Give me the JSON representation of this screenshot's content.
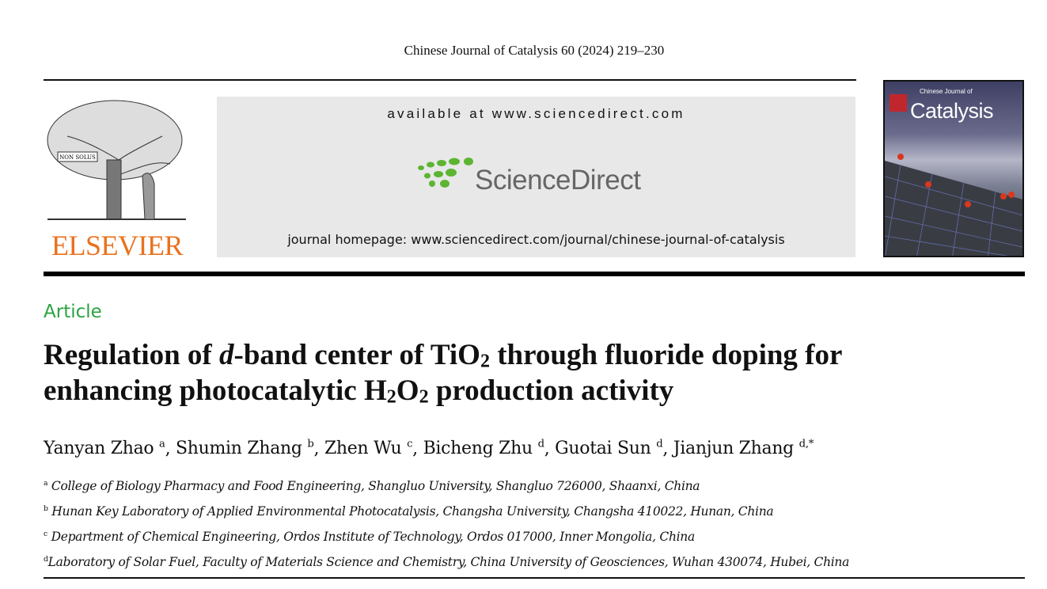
{
  "journal_reference": "Chinese Journal of Catalysis 60 (2024) 219–230",
  "publisher": {
    "name": "ELSEVIER",
    "motto": "NON SOLUS"
  },
  "banner": {
    "available": "available at www.sciencedirect.com",
    "brand": "ScienceDirect",
    "homepage": "journal homepage: www.sciencedirect.com/journal/chinese-journal-of-catalysis"
  },
  "cover": {
    "title_small": "Chinese Journal of",
    "title_large": "Catalysis"
  },
  "article_type": "Article",
  "title": {
    "part1": "Regulation of ",
    "italic": "d",
    "part2": "-band center of TiO",
    "sub1": "2",
    "part3": " through fluoride doping for",
    "line2a": "enhancing photocatalytic H",
    "sub2": "2",
    "line2b": "O",
    "sub3": "2",
    "line2c": " production activity"
  },
  "authors": [
    {
      "name": "Yanyan Zhao",
      "aff": "a"
    },
    {
      "name": "Shumin Zhang",
      "aff": "b"
    },
    {
      "name": "Zhen Wu",
      "aff": "c"
    },
    {
      "name": "Bicheng Zhu",
      "aff": "d"
    },
    {
      "name": "Guotai Sun",
      "aff": "d"
    },
    {
      "name": "Jianjun Zhang",
      "aff": "d,*"
    }
  ],
  "affiliations": [
    {
      "key": "a",
      "text": "College of Biology Pharmacy and Food Engineering, Shangluo University, Shangluo 726000, Shaanxi, China"
    },
    {
      "key": "b",
      "text": "Hunan Key Laboratory of Applied Environmental Photocatalysis, Changsha University, Changsha 410022, Hunan, China"
    },
    {
      "key": "c",
      "text": "Department of Chemical Engineering, Ordos Institute of Technology, Ordos 017000, Inner Mongolia, China"
    },
    {
      "key": "d",
      "text": "Laboratory of Solar Fuel, Faculty of Materials Science and Chemistry, China University of Geosciences, Wuhan 430074, Hubei, China"
    }
  ],
  "colors": {
    "article_label": "#2aa340",
    "elsevier": "#e9711c",
    "sciencedirect_green": "#5cb531"
  }
}
